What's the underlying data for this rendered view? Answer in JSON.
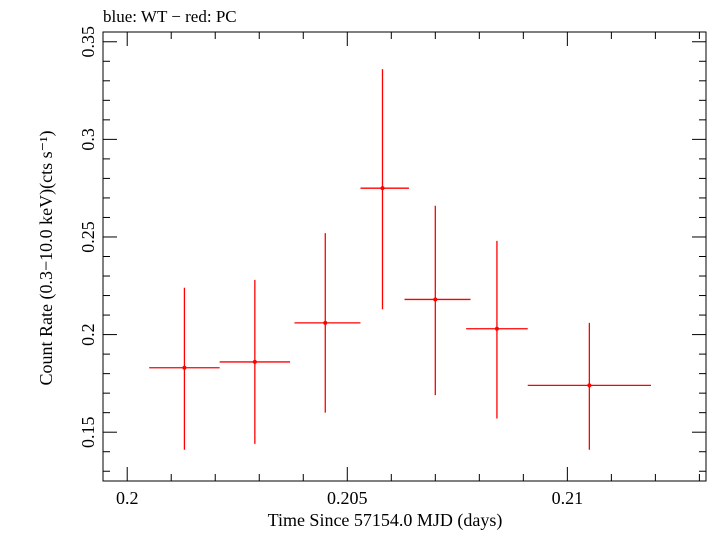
{
  "chart_data": {
    "type": "scatter",
    "title": "blue: WT − red: PC",
    "xlabel": "Time Since 57154.0 MJD (days)",
    "ylabel": "Count Rate (0.3−10.0 keV)(cts s⁻¹)",
    "xlim": [
      0.19945,
      0.21315
    ],
    "ylim": [
      0.125,
      0.355
    ],
    "x_major_ticks": [
      0.2,
      0.205,
      0.21
    ],
    "x_tick_labels": [
      "0.2",
      "0.205",
      "0.21"
    ],
    "y_major_ticks": [
      0.15,
      0.2,
      0.25,
      0.3,
      0.35
    ],
    "y_tick_labels": [
      "0.15",
      "0.2",
      "0.25",
      "0.3",
      "0.35"
    ],
    "x_minor_step": 0.001,
    "y_minor_step": 0.01,
    "grid": false,
    "series": [
      {
        "name": "PC",
        "color": "#ff0000",
        "points": [
          {
            "x": 0.2013,
            "y": 0.183,
            "xlo": 0.2005,
            "xhi": 0.2021,
            "ylo": 0.141,
            "yhi": 0.224
          },
          {
            "x": 0.2029,
            "y": 0.186,
            "xlo": 0.2021,
            "xhi": 0.2037,
            "ylo": 0.144,
            "yhi": 0.228
          },
          {
            "x": 0.2045,
            "y": 0.206,
            "xlo": 0.2038,
            "xhi": 0.2053,
            "ylo": 0.16,
            "yhi": 0.252
          },
          {
            "x": 0.2058,
            "y": 0.275,
            "xlo": 0.2053,
            "xhi": 0.2064,
            "ylo": 0.213,
            "yhi": 0.336
          },
          {
            "x": 0.207,
            "y": 0.218,
            "xlo": 0.2063,
            "xhi": 0.2078,
            "ylo": 0.169,
            "yhi": 0.266
          },
          {
            "x": 0.2084,
            "y": 0.203,
            "xlo": 0.2077,
            "xhi": 0.2091,
            "ylo": 0.157,
            "yhi": 0.248
          },
          {
            "x": 0.2105,
            "y": 0.174,
            "xlo": 0.2091,
            "xhi": 0.2119,
            "ylo": 0.141,
            "yhi": 0.206
          }
        ]
      }
    ]
  }
}
